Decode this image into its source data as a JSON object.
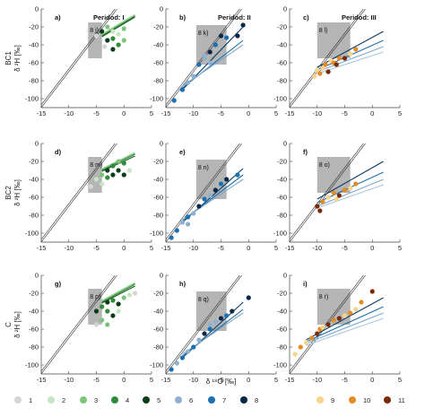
{
  "chart_data": {
    "type": "scatter",
    "rows": [
      {
        "label": "BC1",
        "ylabel": "δ ²H [‰]"
      },
      {
        "label": "BC2",
        "ylabel": "δ ²H [‰]"
      },
      {
        "label": "C",
        "ylabel": "δ ²H [‰]"
      }
    ],
    "xlabel": "δ ¹⁸O [‰]",
    "xlim": [
      -15,
      5
    ],
    "ylim": [
      -110,
      0
    ],
    "xticks": [
      -15,
      -10,
      -5,
      0,
      5
    ],
    "yticks": [
      0,
      -20,
      -40,
      -60,
      -80,
      -100
    ],
    "tick_labels_x": [
      "-15",
      "-10",
      "-5",
      "0",
      "5"
    ],
    "tick_labels_y": [
      "0",
      "-20",
      "-40",
      "-60",
      "-80",
      "-100"
    ],
    "period_titles": [
      "Peridod: I",
      "Peridod: II",
      "Peridod: III"
    ],
    "reference_lines": [
      {
        "slope": 8,
        "intercept": 10
      },
      {
        "slope": 8,
        "intercept": 13
      }
    ],
    "panels": [
      {
        "letter": "a)",
        "box_label": "8 j)",
        "box": [
          -6.5,
          -4,
          -55,
          -15
        ],
        "group": 1,
        "points": [
          [
            -5,
            -30,
            1
          ],
          [
            -3.5,
            -42,
            1
          ],
          [
            -2,
            -25,
            2
          ],
          [
            -1,
            -28,
            2
          ],
          [
            0,
            -22,
            3
          ],
          [
            -3,
            -20,
            3
          ],
          [
            -2,
            -33,
            4
          ],
          [
            -1,
            -40,
            4
          ],
          [
            -4,
            -25,
            5
          ],
          [
            -3,
            -35,
            5
          ],
          [
            -2,
            -45,
            5
          ],
          [
            0,
            -35,
            3
          ]
        ],
        "fits": [
          [
            -4,
            -30,
            2,
            -8,
            "#2e7d32"
          ],
          [
            -4,
            -29,
            2,
            -7,
            "#66bb6a"
          ],
          [
            -4,
            -28,
            2,
            -6,
            "#a5d6a7"
          ],
          [
            -4,
            -31,
            2,
            -9,
            "#1b5e20"
          ]
        ]
      },
      {
        "letter": "b)",
        "box_label": "8 k)",
        "box": [
          -9.5,
          -4,
          -62,
          -18
        ],
        "group": 2,
        "points": [
          [
            -13.5,
            -102,
            7
          ],
          [
            -12,
            -90,
            7
          ],
          [
            -11,
            -82,
            6
          ],
          [
            -10,
            -75,
            6
          ],
          [
            -9,
            -62,
            7
          ],
          [
            -8,
            -52,
            6
          ],
          [
            -7,
            -48,
            8
          ],
          [
            -6,
            -40,
            7
          ],
          [
            -5,
            -30,
            8
          ],
          [
            -4,
            -32,
            7
          ],
          [
            -2,
            -30,
            8
          ],
          [
            -1,
            -18,
            8
          ],
          [
            -8,
            -55,
            6
          ],
          [
            -7,
            -60,
            6
          ]
        ],
        "fits": [
          [
            -12,
            -90,
            -1,
            -20,
            "#0d3b66"
          ],
          [
            -12,
            -88,
            -1,
            -35,
            "#1f6fa8"
          ],
          [
            -12,
            -86,
            -1,
            -40,
            "#7fa8cc"
          ]
        ]
      },
      {
        "letter": "c)",
        "box_label": "8 l)",
        "box": [
          -10,
          -4,
          -55,
          -15
        ],
        "group": 3,
        "points": [
          [
            -10.5,
            -75,
            9
          ],
          [
            -10,
            -68,
            9
          ],
          [
            -9.5,
            -72,
            10
          ],
          [
            -9,
            -66,
            9
          ],
          [
            -8.5,
            -62,
            10
          ],
          [
            -8,
            -70,
            11
          ],
          [
            -7.5,
            -58,
            9
          ],
          [
            -7,
            -60,
            10
          ],
          [
            -6.5,
            -62,
            11
          ],
          [
            -6,
            -55,
            10
          ],
          [
            -5,
            -55,
            11
          ],
          [
            -4,
            -50,
            9
          ],
          [
            -3,
            -45,
            10
          ]
        ],
        "fits": [
          [
            -10,
            -65,
            2,
            -25,
            "#0d3b66"
          ],
          [
            -10,
            -68,
            2,
            -35,
            "#1f6fa8"
          ],
          [
            -10,
            -70,
            2,
            -42,
            "#7fa8cc"
          ],
          [
            -10,
            -72,
            2,
            -48,
            "#a9c7e0"
          ]
        ]
      },
      {
        "letter": "d)",
        "box_label": "8 m)",
        "box": [
          -6.5,
          -4,
          -55,
          -15
        ],
        "group": 1,
        "points": [
          [
            -6,
            -48,
            1
          ],
          [
            -5,
            -40,
            2
          ],
          [
            -4,
            -35,
            3
          ],
          [
            -3,
            -30,
            5
          ],
          [
            -2,
            -25,
            4
          ],
          [
            -1,
            -30,
            5
          ],
          [
            0,
            -22,
            4
          ],
          [
            -3,
            -38,
            4
          ],
          [
            -2,
            -35,
            5
          ],
          [
            -1,
            -20,
            3
          ],
          [
            1,
            -30,
            2
          ],
          [
            0,
            -35,
            5
          ],
          [
            -4,
            -45,
            2
          ]
        ],
        "fits": [
          [
            -4,
            -30,
            2,
            -12,
            "#2e7d32"
          ],
          [
            -4,
            -29,
            2,
            -11,
            "#66bb6a"
          ],
          [
            -4,
            -28,
            2,
            -10,
            "#a5d6a7"
          ],
          [
            -4,
            -31,
            2,
            -14,
            "#1b5e20"
          ]
        ]
      },
      {
        "letter": "e)",
        "box_label": "8 n)",
        "box": [
          -9.5,
          -4,
          -62,
          -18
        ],
        "group": 2,
        "points": [
          [
            -14,
            -105,
            7
          ],
          [
            -13,
            -97,
            7
          ],
          [
            -12,
            -88,
            6
          ],
          [
            -11,
            -82,
            7
          ],
          [
            -10,
            -78,
            6
          ],
          [
            -9,
            -70,
            8
          ],
          [
            -8,
            -62,
            7
          ],
          [
            -7,
            -58,
            6
          ],
          [
            -6,
            -52,
            8
          ],
          [
            -5,
            -45,
            7
          ],
          [
            -4,
            -40,
            8
          ],
          [
            -2,
            -35,
            7
          ],
          [
            -11,
            -90,
            6
          ]
        ],
        "fits": [
          [
            -12,
            -88,
            -1,
            -28,
            "#0d3b66"
          ],
          [
            -12,
            -86,
            -1,
            -35,
            "#1f6fa8"
          ],
          [
            -12,
            -85,
            -1,
            -40,
            "#7fa8cc"
          ]
        ]
      },
      {
        "letter": "f)",
        "box_label": "8 o)",
        "box": [
          -10,
          -4,
          -55,
          -15
        ],
        "group": 3,
        "points": [
          [
            -10,
            -70,
            11
          ],
          [
            -9.5,
            -75,
            11
          ],
          [
            -9,
            -65,
            10
          ],
          [
            -8,
            -60,
            9
          ],
          [
            -7,
            -55,
            10
          ],
          [
            -6,
            -58,
            11
          ],
          [
            -5,
            -52,
            10
          ],
          [
            -4,
            -50,
            9
          ],
          [
            -3,
            -45,
            10
          ],
          [
            -6.5,
            -62,
            9
          ]
        ],
        "fits": [
          [
            -10,
            -62,
            2,
            -20,
            "#0d3b66"
          ],
          [
            -10,
            -66,
            2,
            -32,
            "#1f6fa8"
          ],
          [
            -10,
            -70,
            2,
            -40,
            "#7fa8cc"
          ],
          [
            -10,
            -72,
            2,
            -46,
            "#a9c7e0"
          ]
        ]
      },
      {
        "letter": "g)",
        "box_label": "8 p)",
        "box": [
          -6.5,
          -4,
          -55,
          -15
        ],
        "group": 1,
        "points": [
          [
            -5,
            -40,
            5
          ],
          [
            -4,
            -35,
            4
          ],
          [
            -3,
            -30,
            5
          ],
          [
            -2,
            -28,
            4
          ],
          [
            -1,
            -32,
            5
          ],
          [
            0,
            -25,
            3
          ],
          [
            1,
            -22,
            2
          ],
          [
            -3,
            -40,
            4
          ],
          [
            -2,
            -45,
            5
          ],
          [
            -4,
            -50,
            3
          ],
          [
            -1,
            -40,
            2
          ],
          [
            2,
            -20,
            1
          ],
          [
            -5,
            -55,
            1
          ],
          [
            -3,
            -55,
            3
          ]
        ],
        "fits": [
          [
            -4,
            -30,
            2,
            -10,
            "#2e7d32"
          ],
          [
            -4,
            -29,
            2,
            -9,
            "#66bb6a"
          ],
          [
            -4,
            -28,
            2,
            -8,
            "#a5d6a7"
          ],
          [
            -4,
            -31,
            2,
            -12,
            "#1b5e20"
          ]
        ]
      },
      {
        "letter": "h)",
        "box_label": "8 q)",
        "box": [
          -9.5,
          -4,
          -62,
          -18
        ],
        "group": 2,
        "points": [
          [
            -14,
            -105,
            7
          ],
          [
            -13,
            -98,
            6
          ],
          [
            -12,
            -92,
            7
          ],
          [
            -11,
            -85,
            6
          ],
          [
            -10,
            -80,
            7
          ],
          [
            -9,
            -72,
            6
          ],
          [
            -8,
            -65,
            8
          ],
          [
            -7,
            -60,
            7
          ],
          [
            -6,
            -52,
            6
          ],
          [
            -5,
            -48,
            8
          ],
          [
            -4,
            -45,
            7
          ],
          [
            -3,
            -40,
            8
          ],
          [
            0,
            -25,
            8
          ],
          [
            -7,
            -55,
            6
          ]
        ],
        "fits": [
          [
            -12,
            -92,
            -1,
            -30,
            "#0d3b66"
          ],
          [
            -12,
            -90,
            -1,
            -38,
            "#1f6fa8"
          ],
          [
            -12,
            -88,
            -1,
            -42,
            "#7fa8cc"
          ]
        ]
      },
      {
        "letter": "i)",
        "box_label": "8 r)",
        "box": [
          -10,
          -4,
          -55,
          -15
        ],
        "group": 3,
        "points": [
          [
            -14,
            -88,
            9
          ],
          [
            -13,
            -80,
            10
          ],
          [
            -12,
            -75,
            9
          ],
          [
            -11,
            -70,
            10
          ],
          [
            -10,
            -65,
            11
          ],
          [
            -9.5,
            -60,
            10
          ],
          [
            -9,
            -58,
            9
          ],
          [
            -8,
            -55,
            11
          ],
          [
            -7,
            -50,
            10
          ],
          [
            -6,
            -48,
            11
          ],
          [
            -5,
            -45,
            9
          ],
          [
            -4,
            -42,
            10
          ],
          [
            -3,
            -38,
            9
          ],
          [
            -2,
            -30,
            10
          ],
          [
            0,
            -18,
            11
          ]
        ],
        "fits": [
          [
            -12,
            -72,
            2,
            -25,
            "#0d3b66"
          ],
          [
            -12,
            -74,
            2,
            -35,
            "#1f6fa8"
          ],
          [
            -12,
            -76,
            2,
            -42,
            "#7fa8cc"
          ],
          [
            -12,
            -78,
            2,
            -48,
            "#a9c7e0"
          ]
        ]
      }
    ],
    "legend": [
      {
        "label": "1",
        "color": "#d4d4d4"
      },
      {
        "label": "2",
        "color": "#c6e5c4"
      },
      {
        "label": "3",
        "color": "#7cc47a"
      },
      {
        "label": "4",
        "color": "#2e8b3a"
      },
      {
        "label": "5",
        "color": "#0b3d1a"
      },
      {
        "label": "6",
        "color": "#8fb0cf"
      },
      {
        "label": "7",
        "color": "#1c6fb0"
      },
      {
        "label": "8",
        "color": "#0b2647"
      },
      {
        "label": "9",
        "color": "#f8d48c"
      },
      {
        "label": "10",
        "color": "#e68a22"
      },
      {
        "label": "11",
        "color": "#7a2a05"
      }
    ],
    "legend_placement": "bottom",
    "grid": false
  }
}
